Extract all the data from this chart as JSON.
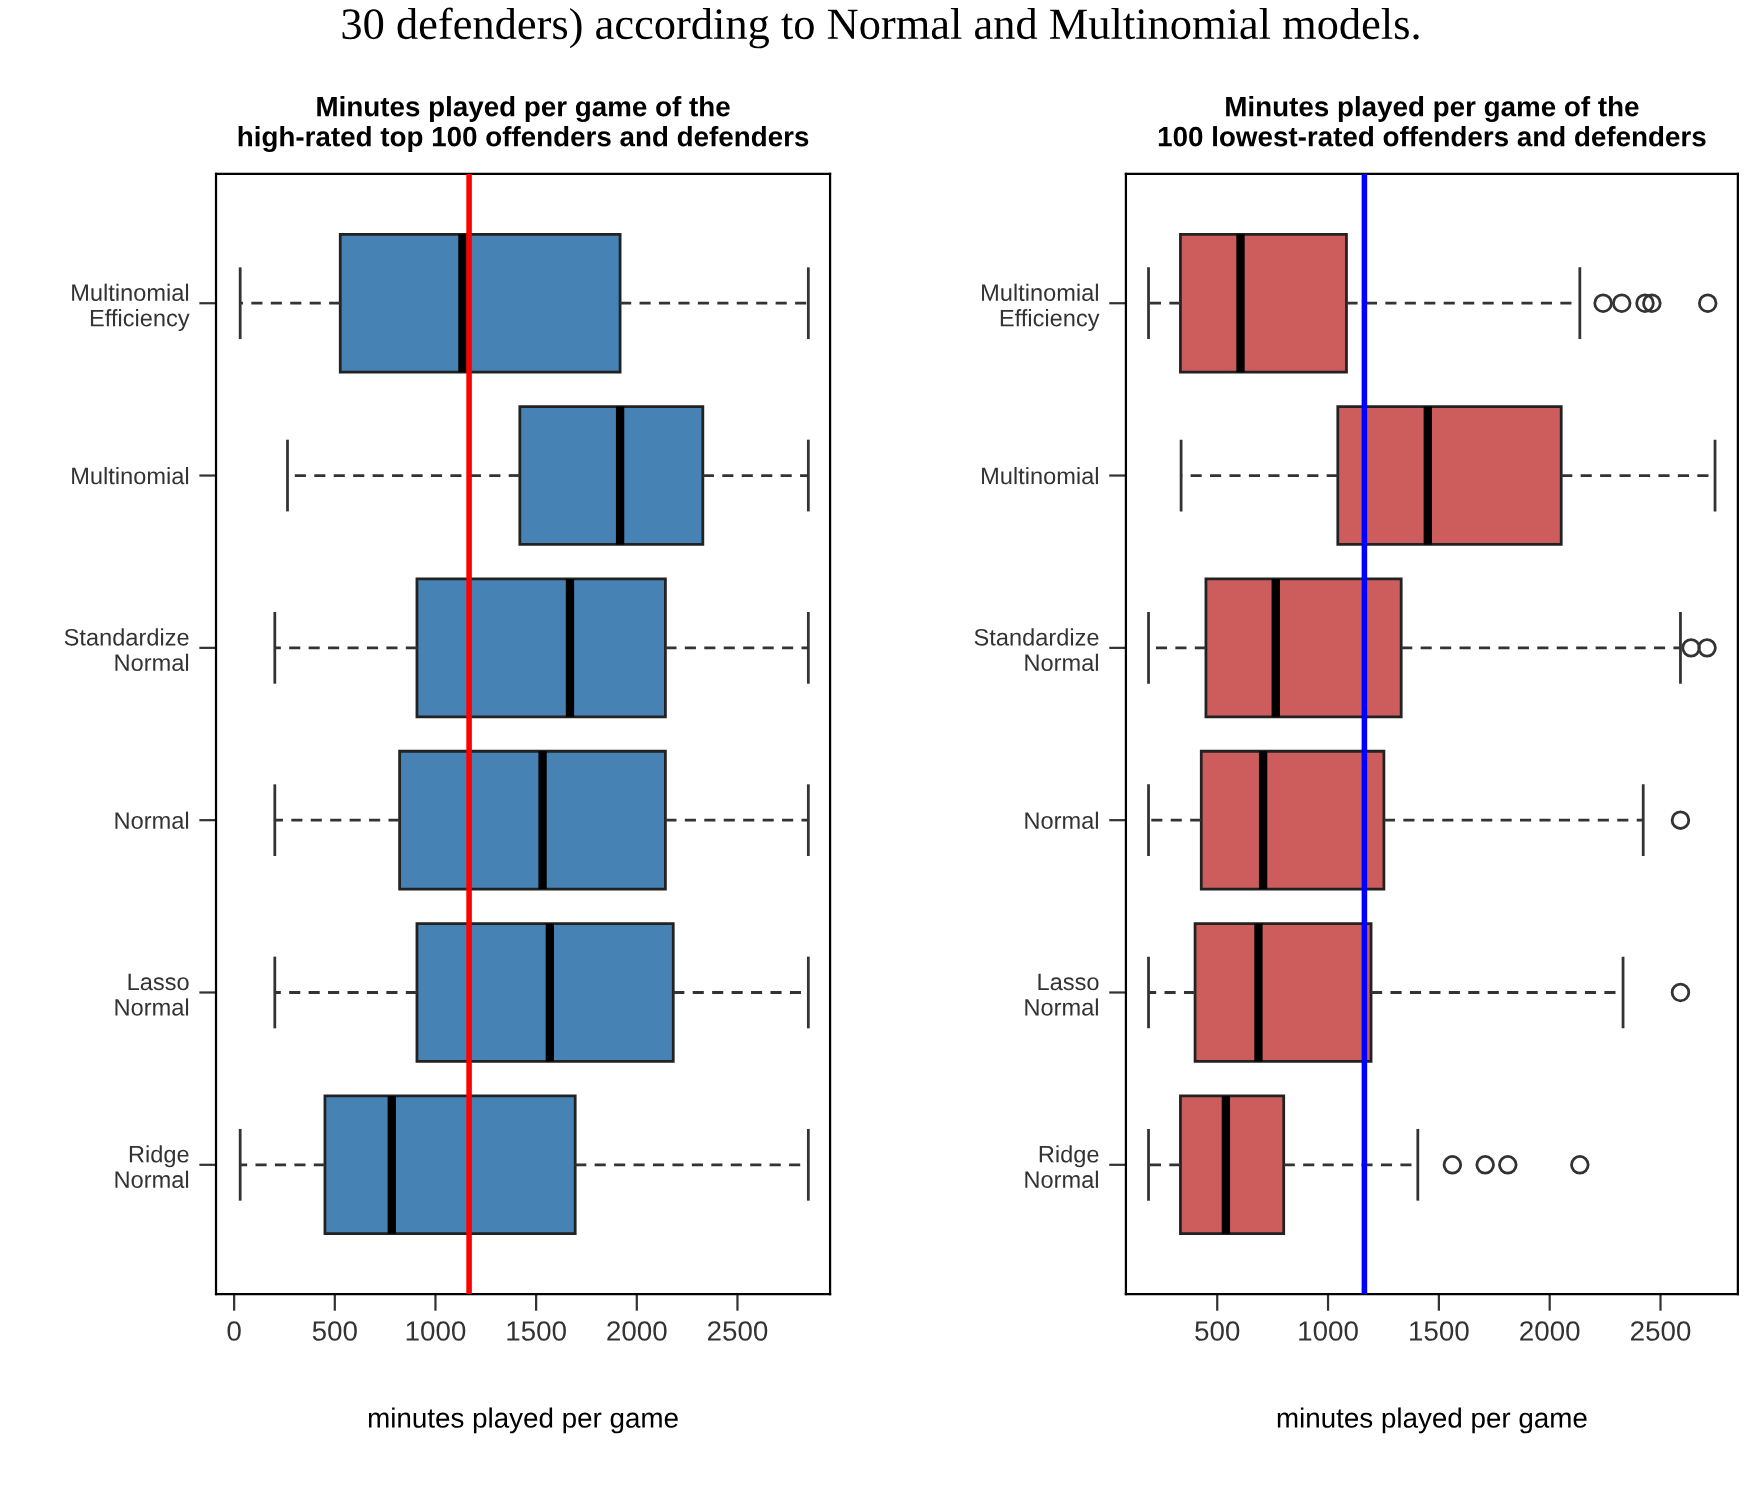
{
  "chart_data": [
    {
      "type": "box",
      "orientation": "horizontal",
      "title": "Minutes played per game of the\nhigh-rated top 100 offenders and defenders",
      "xlabel": "minutes played per game",
      "annotations": [
        "30 defenders) according to Normal and Multinomial models."
      ],
      "categories": [
        "Multinomial\nEfficiency",
        "Multinomial",
        "Standardize\nNormal",
        "Normal",
        "Lasso\nNormal",
        "Ridge\nNormal"
      ],
      "series": [
        {
          "color": "#4682b4",
          "boxes": [
            {
              "low": 30,
              "q1": 527,
              "median": 1134,
              "q3": 1917,
              "high": 2852
            },
            {
              "low": 265,
              "q1": 1419,
              "median": 1917,
              "q3": 2328,
              "high": 2852
            },
            {
              "low": 202,
              "q1": 908,
              "median": 1668,
              "q3": 2142,
              "high": 2852
            },
            {
              "low": 202,
              "q1": 822,
              "median": 1532,
              "q3": 2142,
              "high": 2852
            },
            {
              "low": 202,
              "q1": 908,
              "median": 1568,
              "q3": 2181,
              "high": 2852
            },
            {
              "low": 30,
              "q1": 451,
              "median": 783,
              "q3": 1694,
              "high": 2852
            }
          ]
        }
      ],
      "xlim": [
        -90,
        2960
      ],
      "xticks": [
        0,
        500,
        1000,
        1500,
        2000,
        2500
      ],
      "ref_lines": [
        {
          "axis": "x",
          "value": 1167,
          "color": "#ff0000"
        }
      ],
      "grid": false
    },
    {
      "type": "box",
      "orientation": "horizontal",
      "title": "Minutes played per game of the\n100 lowest-rated offenders and defenders",
      "xlabel": "minutes played per game",
      "categories": [
        "Multinomial\nEfficiency",
        "Multinomial",
        "Standardize\nNormal",
        "Normal",
        "Lasso\nNormal",
        "Ridge\nNormal"
      ],
      "series": [
        {
          "color": "#cd5c5c",
          "boxes": [
            {
              "low": 190,
              "q1": 334,
              "median": 605,
              "q3": 1083,
              "high": 2136,
              "outliers": [
                2241,
                2325,
                2430,
                2461,
                2713
              ]
            },
            {
              "low": 337,
              "q1": 1044,
              "median": 1450,
              "q3": 2052,
              "high": 2746
            },
            {
              "low": 190,
              "q1": 449,
              "median": 764,
              "q3": 1330,
              "high": 2590,
              "outliers": [
                2638,
                2710
              ]
            },
            {
              "low": 190,
              "q1": 428,
              "median": 707,
              "q3": 1252,
              "high": 2422,
              "outliers": [
                2590
              ]
            },
            {
              "low": 190,
              "q1": 400,
              "median": 686,
              "q3": 1194,
              "high": 2331,
              "outliers": [
                2590
              ]
            },
            {
              "low": 190,
              "q1": 334,
              "median": 539,
              "q3": 800,
              "high": 1405,
              "outliers": [
                1561,
                1709,
                1811,
                2136
              ]
            }
          ]
        }
      ],
      "xlim": [
        88,
        2849
      ],
      "xticks": [
        500,
        1000,
        1500,
        2000,
        2500
      ],
      "ref_lines": [
        {
          "axis": "x",
          "value": 1164,
          "color": "#0000ff"
        }
      ],
      "grid": false
    }
  ]
}
